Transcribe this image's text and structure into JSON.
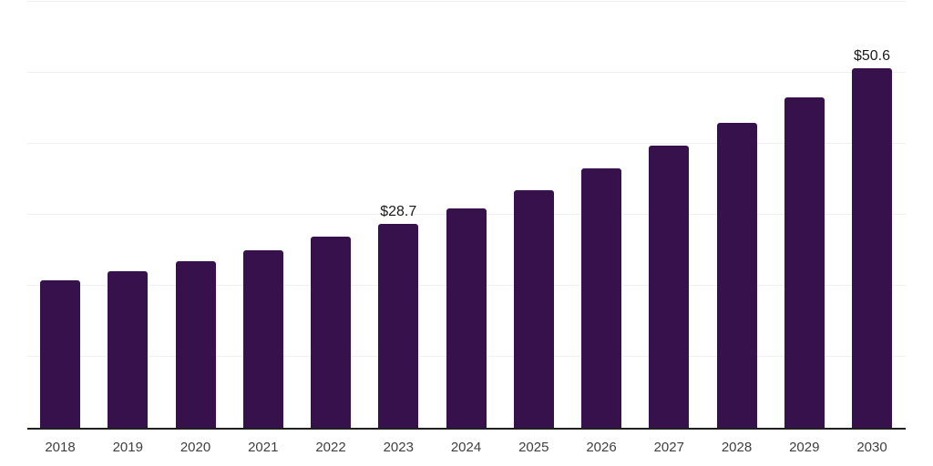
{
  "chart_data": {
    "type": "bar",
    "title": "",
    "xlabel": "",
    "ylabel": "",
    "categories": [
      "2018",
      "2019",
      "2020",
      "2021",
      "2022",
      "2023",
      "2024",
      "2025",
      "2026",
      "2027",
      "2028",
      "2029",
      "2030"
    ],
    "values": [
      20.8,
      22.1,
      23.5,
      25.0,
      26.9,
      28.7,
      30.9,
      33.5,
      36.6,
      39.8,
      43.0,
      46.6,
      50.6
    ],
    "data_labels": {
      "2023": "$28.7",
      "2030": "$50.6"
    },
    "ylim": [
      0,
      60
    ],
    "gridline_values": [
      10,
      20,
      30,
      40,
      50,
      60
    ],
    "grid": "horizontal",
    "legend_position": "none",
    "y_axis_tick_labels_visible": false,
    "bar_color": "#36114C",
    "gridline_color": "#F0F0F0",
    "axis_line_color": "#1F1F1F",
    "tick_label_color": "#3F3F3F",
    "data_label_color": "#1A1A1A",
    "background_color": "#FFFFFF"
  }
}
